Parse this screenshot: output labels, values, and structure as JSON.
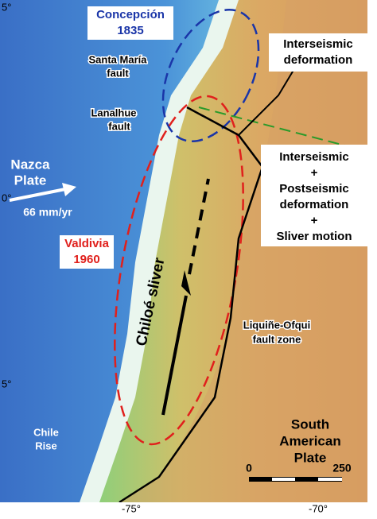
{
  "map": {
    "concepcion": {
      "name": "Concepción",
      "year": "1835"
    },
    "santa_maria": [
      "Santa María",
      "fault"
    ],
    "lanalhue": [
      "Lanalhue",
      "fault"
    ],
    "interseismic": [
      "Interseismic",
      "deformation"
    ],
    "combined": [
      "Interseismic",
      "+",
      "Postseismic",
      "deformation",
      "+",
      "Sliver motion"
    ],
    "nazca": {
      "name": [
        "Nazca",
        "Plate"
      ],
      "rate": "66 mm/yr"
    },
    "valdivia": {
      "name": "Valdivia",
      "year": "1960"
    },
    "sliver": "Chiloé sliver",
    "liquine": [
      "Liquiñe-Ofqui",
      "fault zone"
    ],
    "chile_rise": [
      "Chile",
      "Rise"
    ],
    "south_american": [
      "South",
      "American",
      "Plate"
    ],
    "scale": [
      "0",
      "250"
    ],
    "x_labels": [
      "-75°",
      "-70°"
    ],
    "y_labels": [
      "5°",
      "0°",
      "5°"
    ]
  }
}
